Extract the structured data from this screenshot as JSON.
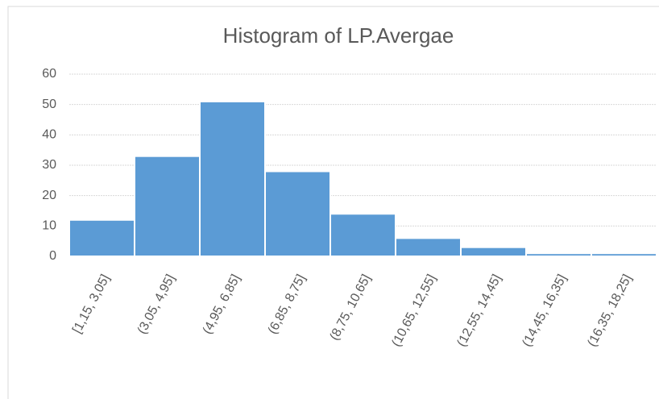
{
  "chart_data": {
    "type": "bar",
    "title": "Histogram of LP.Avergae",
    "categories": [
      "[1,15, 3,05]",
      "(3,05, 4,95]",
      "(4,95, 6,85]",
      "(6,85, 8,75]",
      "(8,75, 10,65]",
      "(10,65, 12,55]",
      "(12,55, 14,45]",
      "(14,45, 16,35]",
      "(16,35, 18,25]"
    ],
    "values": [
      12,
      33,
      51,
      28,
      14,
      6,
      3,
      1,
      1
    ],
    "color": "#5b9bd5",
    "ylim": [
      0,
      60
    ],
    "yticks": [
      0,
      10,
      20,
      30,
      40,
      50,
      60
    ],
    "grid": true
  }
}
